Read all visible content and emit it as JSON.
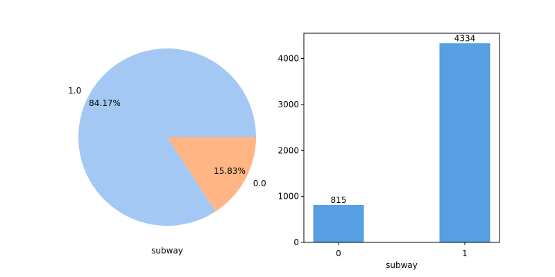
{
  "chart_data": [
    {
      "type": "pie",
      "xlabel": "subway",
      "slices": [
        {
          "label": "1.0",
          "value": 84.17,
          "pct_label": "84.17%",
          "color": "#a3c8f3"
        },
        {
          "label": "0.0",
          "value": 15.83,
          "pct_label": "15.83%",
          "color": "#ffb584"
        }
      ]
    },
    {
      "type": "bar",
      "xlabel": "subway",
      "ylabel": "",
      "categories": [
        "0",
        "1"
      ],
      "values": [
        815,
        4334
      ],
      "value_labels": [
        "815",
        "4334"
      ],
      "ylim": [
        0,
        4550
      ],
      "yticks": [
        0,
        1000,
        2000,
        3000,
        4000
      ],
      "ytick_labels": [
        "0",
        "1000",
        "2000",
        "3000",
        "4000"
      ],
      "color": "#569fe3",
      "grid": false
    }
  ]
}
